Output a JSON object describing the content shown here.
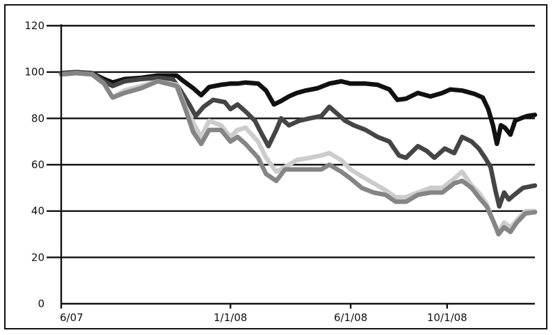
{
  "chart_data": {
    "type": "line",
    "ylim": [
      0,
      120
    ],
    "yticks": [
      0,
      20,
      40,
      60,
      80,
      100,
      120
    ],
    "xlim": [
      "2007-06-01",
      "2009-01-20"
    ],
    "xticks": [
      {
        "date": "2007-06-01",
        "label": "6/07"
      },
      {
        "date": "2008-01-01",
        "label": "1/1/08"
      },
      {
        "date": "2008-06-01",
        "label": "6/1/08"
      },
      {
        "date": "2008-10-01",
        "label": "10/1/08"
      }
    ],
    "grid": "horizontal",
    "legend": "none",
    "series": [
      {
        "color": "#111111",
        "points": [
          [
            "2007-06-01",
            99.5
          ],
          [
            "2007-06-20",
            100
          ],
          [
            "2007-07-10",
            99.5
          ],
          [
            "2007-07-25",
            97
          ],
          [
            "2007-08-05",
            95.5
          ],
          [
            "2007-08-20",
            97
          ],
          [
            "2007-09-10",
            97.5
          ],
          [
            "2007-10-01",
            98.5
          ],
          [
            "2007-10-25",
            98.5
          ],
          [
            "2007-11-01",
            96.5
          ],
          [
            "2007-11-15",
            93
          ],
          [
            "2007-11-25",
            90
          ],
          [
            "2007-12-05",
            93.5
          ],
          [
            "2007-12-20",
            94.5
          ],
          [
            "2008-01-01",
            95
          ],
          [
            "2008-01-10",
            95
          ],
          [
            "2008-01-20",
            95.5
          ],
          [
            "2008-02-05",
            95
          ],
          [
            "2008-02-15",
            92
          ],
          [
            "2008-02-25",
            86
          ],
          [
            "2008-03-05",
            87.5
          ],
          [
            "2008-03-15",
            89.5
          ],
          [
            "2008-03-25",
            91
          ],
          [
            "2008-04-05",
            92
          ],
          [
            "2008-04-20",
            93
          ],
          [
            "2008-05-05",
            95
          ],
          [
            "2008-05-20",
            96
          ],
          [
            "2008-06-01",
            95
          ],
          [
            "2008-06-20",
            95
          ],
          [
            "2008-07-05",
            94.5
          ],
          [
            "2008-07-20",
            92.5
          ],
          [
            "2008-07-30",
            88
          ],
          [
            "2008-08-10",
            88.5
          ],
          [
            "2008-08-25",
            91
          ],
          [
            "2008-09-10",
            89.5
          ],
          [
            "2008-09-25",
            91
          ],
          [
            "2008-10-05",
            92.5
          ],
          [
            "2008-10-20",
            92
          ],
          [
            "2008-11-05",
            90.5
          ],
          [
            "2008-11-15",
            89
          ],
          [
            "2008-11-22",
            84
          ],
          [
            "2008-11-28",
            77
          ],
          [
            "2008-12-03",
            69
          ],
          [
            "2008-12-08",
            77
          ],
          [
            "2008-12-13",
            76
          ],
          [
            "2008-12-20",
            73
          ],
          [
            "2008-12-26",
            79
          ],
          [
            "2009-01-02",
            80
          ],
          [
            "2009-01-10",
            81
          ],
          [
            "2009-01-20",
            81.5
          ]
        ]
      },
      {
        "color": "#454545",
        "points": [
          [
            "2007-06-01",
            99.5
          ],
          [
            "2007-06-20",
            100
          ],
          [
            "2007-07-10",
            99.5
          ],
          [
            "2007-07-25",
            96
          ],
          [
            "2007-08-05",
            94
          ],
          [
            "2007-08-20",
            96
          ],
          [
            "2007-09-10",
            97
          ],
          [
            "2007-10-01",
            97.5
          ],
          [
            "2007-10-20",
            97
          ],
          [
            "2007-10-30",
            92
          ],
          [
            "2007-11-10",
            86
          ],
          [
            "2007-11-18",
            81
          ],
          [
            "2007-11-28",
            85
          ],
          [
            "2007-12-10",
            88
          ],
          [
            "2007-12-25",
            87
          ],
          [
            "2008-01-01",
            84
          ],
          [
            "2008-01-10",
            86
          ],
          [
            "2008-01-20",
            83
          ],
          [
            "2008-02-01",
            79
          ],
          [
            "2008-02-10",
            73
          ],
          [
            "2008-02-18",
            68
          ],
          [
            "2008-02-28",
            75
          ],
          [
            "2008-03-05",
            80
          ],
          [
            "2008-03-15",
            77
          ],
          [
            "2008-03-28",
            79
          ],
          [
            "2008-04-10",
            80
          ],
          [
            "2008-04-25",
            81
          ],
          [
            "2008-05-05",
            85
          ],
          [
            "2008-05-15",
            82
          ],
          [
            "2008-05-25",
            79
          ],
          [
            "2008-06-05",
            77
          ],
          [
            "2008-06-20",
            75
          ],
          [
            "2008-07-05",
            72
          ],
          [
            "2008-07-20",
            70
          ],
          [
            "2008-08-01",
            64
          ],
          [
            "2008-08-10",
            63
          ],
          [
            "2008-08-25",
            68
          ],
          [
            "2008-09-05",
            66
          ],
          [
            "2008-09-15",
            63
          ],
          [
            "2008-09-28",
            67
          ],
          [
            "2008-10-10",
            65
          ],
          [
            "2008-10-20",
            72
          ],
          [
            "2008-11-01",
            70
          ],
          [
            "2008-11-10",
            67
          ],
          [
            "2008-11-18",
            63
          ],
          [
            "2008-11-25",
            59
          ],
          [
            "2008-12-01",
            49
          ],
          [
            "2008-12-06",
            42
          ],
          [
            "2008-12-12",
            48
          ],
          [
            "2008-12-18",
            45
          ],
          [
            "2008-12-25",
            47
          ],
          [
            "2009-01-05",
            50
          ],
          [
            "2009-01-20",
            51
          ]
        ]
      },
      {
        "color": "#cccccc",
        "points": [
          [
            "2007-06-01",
            99
          ],
          [
            "2007-06-20",
            99.5
          ],
          [
            "2007-07-10",
            99
          ],
          [
            "2007-07-25",
            95
          ],
          [
            "2007-08-05",
            89
          ],
          [
            "2007-08-20",
            92
          ],
          [
            "2007-09-10",
            94
          ],
          [
            "2007-10-01",
            96
          ],
          [
            "2007-10-25",
            94.5
          ],
          [
            "2007-11-05",
            85
          ],
          [
            "2007-11-15",
            78
          ],
          [
            "2007-11-25",
            72
          ],
          [
            "2007-12-05",
            79
          ],
          [
            "2007-12-20",
            77
          ],
          [
            "2008-01-01",
            72
          ],
          [
            "2008-01-10",
            75
          ],
          [
            "2008-01-20",
            76
          ],
          [
            "2008-02-05",
            70
          ],
          [
            "2008-02-15",
            63
          ],
          [
            "2008-02-28",
            57
          ],
          [
            "2008-03-10",
            59
          ],
          [
            "2008-03-25",
            62
          ],
          [
            "2008-04-10",
            63
          ],
          [
            "2008-04-25",
            64
          ],
          [
            "2008-05-05",
            65
          ],
          [
            "2008-05-20",
            62
          ],
          [
            "2008-06-01",
            58
          ],
          [
            "2008-06-15",
            55
          ],
          [
            "2008-06-30",
            52
          ],
          [
            "2008-07-15",
            49
          ],
          [
            "2008-07-28",
            46
          ],
          [
            "2008-08-10",
            46
          ],
          [
            "2008-08-25",
            48
          ],
          [
            "2008-09-10",
            50
          ],
          [
            "2008-09-25",
            50
          ],
          [
            "2008-10-10",
            54
          ],
          [
            "2008-10-20",
            57
          ],
          [
            "2008-11-01",
            51
          ],
          [
            "2008-11-10",
            48
          ],
          [
            "2008-11-20",
            43
          ],
          [
            "2008-11-28",
            36
          ],
          [
            "2008-12-05",
            31
          ],
          [
            "2008-12-12",
            35
          ],
          [
            "2008-12-20",
            33
          ],
          [
            "2008-12-28",
            36
          ],
          [
            "2009-01-08",
            40
          ],
          [
            "2009-01-20",
            40
          ]
        ]
      },
      {
        "color": "#858585",
        "points": [
          [
            "2007-06-01",
            99
          ],
          [
            "2007-06-20",
            99.5
          ],
          [
            "2007-07-10",
            99
          ],
          [
            "2007-07-25",
            95
          ],
          [
            "2007-08-05",
            89
          ],
          [
            "2007-08-20",
            91
          ],
          [
            "2007-09-10",
            93
          ],
          [
            "2007-10-01",
            96
          ],
          [
            "2007-10-25",
            94
          ],
          [
            "2007-11-05",
            84
          ],
          [
            "2007-11-15",
            74
          ],
          [
            "2007-11-25",
            69
          ],
          [
            "2007-12-05",
            75
          ],
          [
            "2007-12-20",
            75
          ],
          [
            "2008-01-01",
            70
          ],
          [
            "2008-01-10",
            72
          ],
          [
            "2008-01-20",
            69
          ],
          [
            "2008-02-05",
            63
          ],
          [
            "2008-02-15",
            56
          ],
          [
            "2008-02-28",
            53
          ],
          [
            "2008-03-10",
            58
          ],
          [
            "2008-03-25",
            58
          ],
          [
            "2008-04-10",
            58
          ],
          [
            "2008-04-25",
            58
          ],
          [
            "2008-05-05",
            60
          ],
          [
            "2008-05-20",
            57
          ],
          [
            "2008-06-01",
            54
          ],
          [
            "2008-06-15",
            50
          ],
          [
            "2008-06-30",
            48
          ],
          [
            "2008-07-15",
            47
          ],
          [
            "2008-07-28",
            44
          ],
          [
            "2008-08-10",
            44
          ],
          [
            "2008-08-25",
            47
          ],
          [
            "2008-09-10",
            48
          ],
          [
            "2008-09-25",
            48
          ],
          [
            "2008-10-10",
            52
          ],
          [
            "2008-10-20",
            53
          ],
          [
            "2008-11-01",
            50
          ],
          [
            "2008-11-10",
            46
          ],
          [
            "2008-11-20",
            42
          ],
          [
            "2008-11-28",
            36
          ],
          [
            "2008-12-05",
            30
          ],
          [
            "2008-12-12",
            33
          ],
          [
            "2008-12-20",
            31
          ],
          [
            "2008-12-28",
            35
          ],
          [
            "2009-01-08",
            39
          ],
          [
            "2009-01-20",
            39.5
          ]
        ]
      }
    ]
  }
}
